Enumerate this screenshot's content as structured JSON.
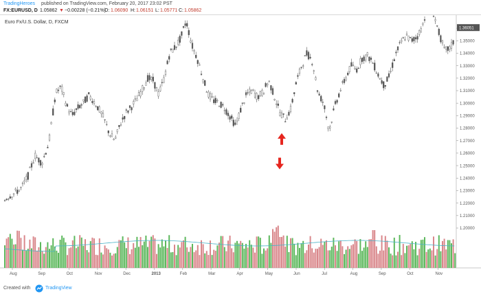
{
  "header": {
    "brand": "TradingHeroes",
    "published_text": "published on TradingView.com, February 20, 2017 23:02 PST"
  },
  "quote": {
    "symbol": "FX:EURUSD, D",
    "last": "1.05862",
    "arrow": "▼",
    "change": "−0.00228 (−0.21%)",
    "open_label": "O:",
    "open": "1.06090",
    "high_label": "H:",
    "high": "1.06151",
    "low_label": "L:",
    "low": "1.05771",
    "close_label": "C:",
    "close": "1.05862"
  },
  "chart_data": {
    "type": "candlestick-with-volume",
    "title": "Euro Fx/U.S. Dollar, D, FXCM",
    "last_price_badge": "1.36051",
    "y_ticks": [
      "1.36000",
      "1.35000",
      "1.34000",
      "1.33000",
      "1.32000",
      "1.31000",
      "1.30000",
      "1.29000",
      "1.28000",
      "1.27000",
      "1.26000",
      "1.25000",
      "1.24000",
      "1.23000",
      "1.22000",
      "1.21000",
      "1.20000"
    ],
    "ylim": [
      1.2,
      1.365
    ],
    "x_ticks": [
      "Aug",
      "Sep",
      "Oct",
      "Nov",
      "Dec",
      "2013",
      "Feb",
      "Mar",
      "Apr",
      "May",
      "Jun",
      "Jul",
      "Aug",
      "Sep",
      "Oct",
      "Nov"
    ],
    "price_path": [
      [
        0,
        1.218
      ],
      [
        10,
        1.225
      ],
      [
        20,
        1.228
      ],
      [
        30,
        1.232
      ],
      [
        40,
        1.242
      ],
      [
        50,
        1.258
      ],
      [
        60,
        1.252
      ],
      [
        70,
        1.268
      ],
      [
        80,
        1.308
      ],
      [
        88,
        1.313
      ],
      [
        96,
        1.298
      ],
      [
        104,
        1.29
      ],
      [
        112,
        1.296
      ],
      [
        120,
        1.3
      ],
      [
        128,
        1.306
      ],
      [
        135,
        1.302
      ],
      [
        142,
        1.296
      ],
      [
        150,
        1.288
      ],
      [
        158,
        1.276
      ],
      [
        166,
        1.27
      ],
      [
        174,
        1.283
      ],
      [
        182,
        1.292
      ],
      [
        190,
        1.297
      ],
      [
        198,
        1.303
      ],
      [
        206,
        1.311
      ],
      [
        214,
        1.32
      ],
      [
        222,
        1.318
      ],
      [
        230,
        1.307
      ],
      [
        238,
        1.32
      ],
      [
        246,
        1.34
      ],
      [
        254,
        1.345
      ],
      [
        262,
        1.352
      ],
      [
        270,
        1.366
      ],
      [
        278,
        1.347
      ],
      [
        286,
        1.336
      ],
      [
        294,
        1.321
      ],
      [
        302,
        1.307
      ],
      [
        310,
        1.302
      ],
      [
        318,
        1.3
      ],
      [
        326,
        1.296
      ],
      [
        334,
        1.289
      ],
      [
        342,
        1.282
      ],
      [
        350,
        1.296
      ],
      [
        358,
        1.307
      ],
      [
        366,
        1.31
      ],
      [
        374,
        1.305
      ],
      [
        382,
        1.309
      ],
      [
        390,
        1.318
      ],
      [
        398,
        1.306
      ],
      [
        406,
        1.293
      ],
      [
        414,
        1.287
      ],
      [
        422,
        1.295
      ],
      [
        430,
        1.316
      ],
      [
        438,
        1.33
      ],
      [
        446,
        1.34
      ],
      [
        454,
        1.333
      ],
      [
        462,
        1.308
      ],
      [
        470,
        1.3
      ],
      [
        478,
        1.278
      ],
      [
        486,
        1.297
      ],
      [
        494,
        1.31
      ],
      [
        502,
        1.32
      ],
      [
        510,
        1.33
      ],
      [
        518,
        1.327
      ],
      [
        526,
        1.336
      ],
      [
        534,
        1.338
      ],
      [
        542,
        1.332
      ],
      [
        550,
        1.322
      ],
      [
        558,
        1.314
      ],
      [
        566,
        1.322
      ],
      [
        574,
        1.338
      ],
      [
        582,
        1.348
      ],
      [
        590,
        1.354
      ],
      [
        598,
        1.35
      ],
      [
        606,
        1.353
      ],
      [
        614,
        1.362
      ],
      [
        622,
        1.38
      ],
      [
        630,
        1.372
      ],
      [
        638,
        1.356
      ],
      [
        646,
        1.342
      ],
      [
        654,
        1.344
      ],
      [
        662,
        1.352
      ],
      [
        670,
        1.36
      ]
    ],
    "annotations": [
      {
        "name": "up-arrow",
        "x": 410,
        "y_price": 1.276,
        "direction": "up",
        "color": "#e6261f"
      },
      {
        "name": "down-arrow",
        "x": 407,
        "y_price": 1.247,
        "direction": "down",
        "color": "#e6261f"
      }
    ],
    "volume_colors": {
      "up": "#5cb85c",
      "down": "#d9868a"
    },
    "ma_color": "#4ab3c7",
    "candle_color": "#555555"
  },
  "footer": {
    "created": "Created with",
    "logo_text": "TradingView"
  }
}
